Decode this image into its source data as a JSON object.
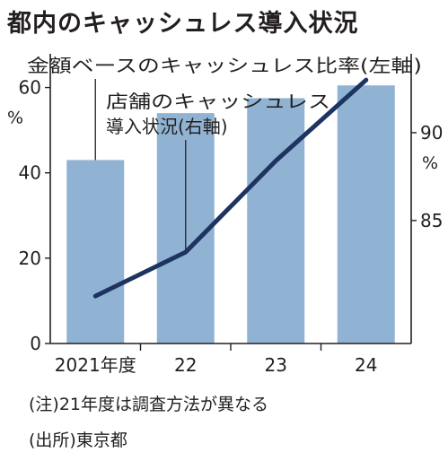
{
  "chart_data": {
    "type": "bar+line",
    "title": "都内のキャッシュレス導入状況",
    "categories": [
      "2021年度",
      "22",
      "23",
      "24"
    ],
    "series": [
      {
        "name": "金額ベースのキャッシュレス比率(左軸)",
        "kind": "bar",
        "axis": "left",
        "values": [
          43,
          54,
          57.5,
          60.5
        ],
        "color": "#91b3d3"
      },
      {
        "name": "店舗のキャッシュレス導入状況(右軸)",
        "kind": "line",
        "axis": "right",
        "values": [
          80.7,
          83.2,
          88.4,
          93.0
        ],
        "color": "#1d3461"
      }
    ],
    "y_left": {
      "min": 0,
      "max": 70,
      "ticks": [
        0,
        20,
        40,
        60
      ],
      "unit": "%"
    },
    "y_right": {
      "min": 78,
      "max": 95,
      "ticks": [
        85,
        90
      ],
      "unit": "%"
    }
  },
  "notes": {
    "note1": "(注)21年度は調査方法が異なる",
    "source": "(出所)東京都"
  }
}
